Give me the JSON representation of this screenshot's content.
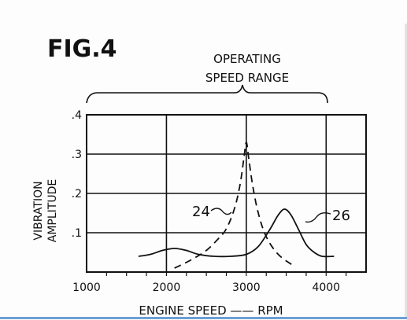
{
  "figure_label": "FIG.4",
  "annotation": {
    "range_line1": "OPERATING",
    "range_line2": "SPEED RANGE"
  },
  "chart_data": {
    "type": "line",
    "xlabel": "ENGINE SPEED —— RPM",
    "ylabel_line1": "VIBRATION",
    "ylabel_line2": "AMPLITUDE",
    "xlim": [
      1000,
      4500
    ],
    "ylim": [
      0,
      0.4
    ],
    "x_ticks": [
      {
        "value": 1000,
        "label": "1000"
      },
      {
        "value": 2000,
        "label": "2000"
      },
      {
        "value": 3000,
        "label": "3000"
      },
      {
        "value": 4000,
        "label": "4000"
      }
    ],
    "y_ticks": [
      {
        "value": 0.1,
        "label": ".1"
      },
      {
        "value": 0.2,
        "label": ".2"
      },
      {
        "value": 0.3,
        "label": ".3"
      },
      {
        "value": 0.4,
        "label": ".4"
      }
    ],
    "operating_range": [
      1000,
      4000
    ],
    "grid": true,
    "series": [
      {
        "name": "24",
        "style": "dashed",
        "points": [
          [
            2100,
            0.01
          ],
          [
            2300,
            0.03
          ],
          [
            2500,
            0.055
          ],
          [
            2650,
            0.085
          ],
          [
            2750,
            0.11
          ],
          [
            2850,
            0.16
          ],
          [
            2920,
            0.22
          ],
          [
            2970,
            0.29
          ],
          [
            3000,
            0.33
          ],
          [
            3030,
            0.29
          ],
          [
            3080,
            0.22
          ],
          [
            3150,
            0.15
          ],
          [
            3250,
            0.09
          ],
          [
            3400,
            0.045
          ],
          [
            3600,
            0.015
          ]
        ]
      },
      {
        "name": "26",
        "style": "solid",
        "points": [
          [
            1650,
            0.04
          ],
          [
            1800,
            0.045
          ],
          [
            1950,
            0.055
          ],
          [
            2100,
            0.06
          ],
          [
            2250,
            0.055
          ],
          [
            2400,
            0.045
          ],
          [
            2600,
            0.04
          ],
          [
            2800,
            0.04
          ],
          [
            3000,
            0.045
          ],
          [
            3150,
            0.065
          ],
          [
            3300,
            0.11
          ],
          [
            3400,
            0.145
          ],
          [
            3480,
            0.16
          ],
          [
            3560,
            0.145
          ],
          [
            3650,
            0.11
          ],
          [
            3750,
            0.07
          ],
          [
            3850,
            0.05
          ],
          [
            3950,
            0.04
          ],
          [
            4100,
            0.04
          ]
        ]
      }
    ]
  }
}
